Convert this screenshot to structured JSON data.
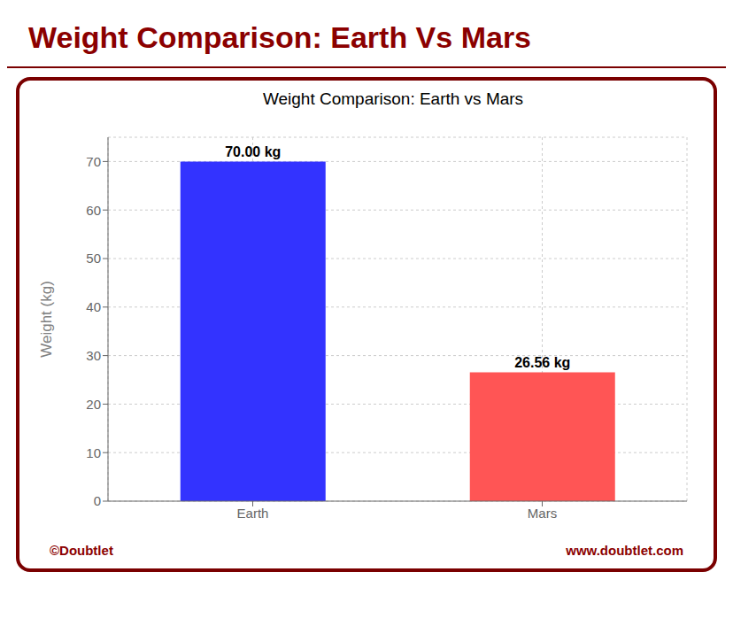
{
  "chart_data": {
    "type": "bar",
    "title": "Weight Comparison: Earth Vs Mars",
    "subtitle": "Weight Comparison: Earth vs Mars",
    "categories": [
      "Earth",
      "Mars"
    ],
    "values": [
      70.0,
      26.56
    ],
    "value_labels": [
      "70.00 kg",
      "26.56 kg"
    ],
    "data_labels": true,
    "colors": [
      "#3333ff",
      "#ff5555"
    ],
    "ylabel": "Weight (kg)",
    "ylim": [
      0,
      75
    ],
    "yticks": [
      0,
      10,
      20,
      30,
      40,
      50,
      60,
      70
    ],
    "grid": true,
    "annotations": [
      "©Doubtlet",
      "www.doubtlet.com"
    ]
  }
}
